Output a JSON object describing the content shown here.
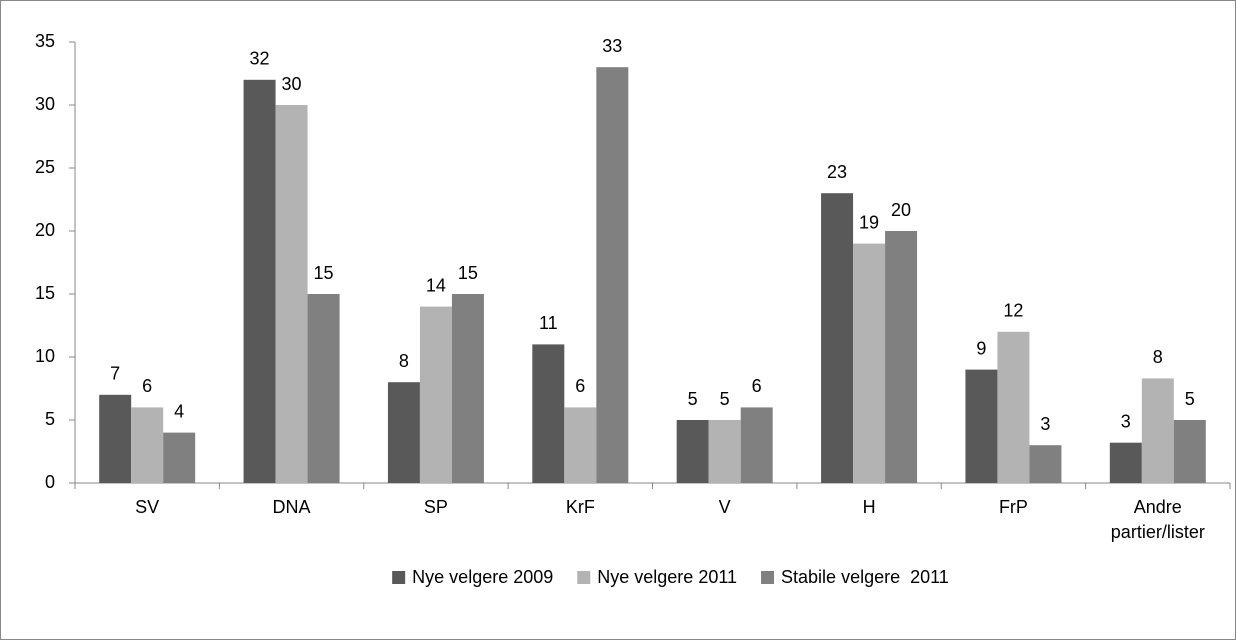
{
  "chart_data": {
    "type": "bar",
    "categories": [
      "SV",
      "DNA",
      "SP",
      "KrF",
      "V",
      "H",
      "FrP",
      "Andre partier/lister"
    ],
    "series": [
      {
        "name": "Nye velgere 2009",
        "color": "#595959",
        "values": [
          7,
          32,
          8,
          11,
          5,
          23,
          9,
          3.2
        ],
        "value_labels": [
          "7",
          "32",
          "8",
          "11",
          "5",
          "23",
          "9",
          "3"
        ]
      },
      {
        "name": "Nye velgere 2011",
        "color": "#b3b3b3",
        "values": [
          6,
          30,
          14,
          6,
          5,
          19,
          12,
          8.3
        ],
        "value_labels": [
          "6",
          "30",
          "14",
          "6",
          "5",
          "19",
          "12",
          "8"
        ]
      },
      {
        "name": "Stabile velgere  2011",
        "color": "#808080",
        "values": [
          4,
          15,
          15,
          33,
          6,
          20,
          3,
          5
        ],
        "value_labels": [
          "4",
          "15",
          "15",
          "33",
          "6",
          "20",
          "3",
          "5"
        ]
      }
    ],
    "ylim": [
      0,
      35
    ],
    "yticks": [
      0,
      5,
      10,
      15,
      20,
      25,
      30,
      35
    ],
    "grid": false,
    "legend": "bottom"
  }
}
